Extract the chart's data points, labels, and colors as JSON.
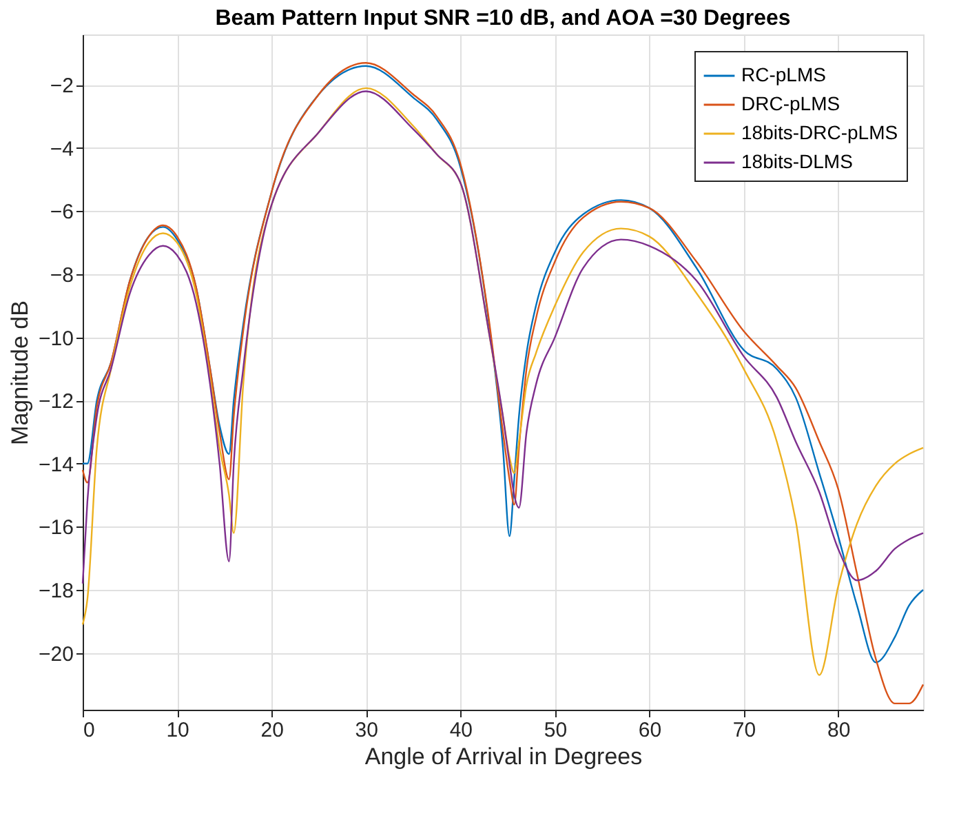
{
  "chart_data": {
    "type": "line",
    "title": "Beam Pattern Input SNR =10 dB, and AOA =30 Degrees",
    "xlabel": "Angle of Arrival in Degrees",
    "ylabel": "Magnitude dB",
    "x": [
      0,
      0.5,
      1.5,
      3,
      5,
      7,
      8.5,
      10,
      12,
      13.5,
      14.5,
      15.5,
      16,
      17,
      20,
      25,
      30,
      35,
      37.5,
      40,
      43,
      44.5,
      45.2,
      45.7,
      46.2,
      47,
      48,
      50,
      53,
      57,
      60,
      65,
      70,
      73.5,
      75.5,
      78,
      80,
      82,
      84,
      86,
      87.5,
      89
    ],
    "series": [
      {
        "name": "RC-pLMS",
        "color": "#0072bd",
        "values": [
          -14.0,
          -14.0,
          -12.0,
          -10.8,
          -8.2,
          -6.8,
          -6.5,
          -6.9,
          -8.4,
          -11.0,
          -12.8,
          -13.7,
          -12.0,
          -9.6,
          -5.4,
          -2.3,
          -1.4,
          -2.4,
          -3.1,
          -4.6,
          -9.5,
          -13.5,
          -16.3,
          -14.5,
          -12.5,
          -10.5,
          -9.0,
          -7.3,
          -6.1,
          -5.65,
          -5.9,
          -7.8,
          -10.4,
          -11.0,
          -11.9,
          -14.3,
          -16.3,
          -18.5,
          -20.3,
          -19.5,
          -18.5,
          -18.0
        ]
      },
      {
        "name": "DRC-pLMS",
        "color": "#d95319",
        "values": [
          -14.2,
          -14.6,
          -12.2,
          -10.8,
          -8.2,
          -6.8,
          -6.45,
          -6.8,
          -8.4,
          -11.0,
          -13.0,
          -14.5,
          -12.5,
          -9.8,
          -5.4,
          -2.3,
          -1.3,
          -2.3,
          -3.0,
          -4.5,
          -9.4,
          -13.0,
          -14.5,
          -15.3,
          -13.5,
          -11.0,
          -9.4,
          -7.6,
          -6.2,
          -5.7,
          -5.9,
          -7.6,
          -9.8,
          -10.9,
          -11.6,
          -13.3,
          -14.8,
          -17.5,
          -20.2,
          -21.6,
          -21.6,
          -21.0
        ]
      },
      {
        "name": "18bits-DRC-pLMS",
        "color": "#edb120",
        "values": [
          -19.1,
          -18.3,
          -13.5,
          -11.0,
          -8.4,
          -7.0,
          -6.7,
          -7.0,
          -8.6,
          -11.3,
          -13.5,
          -15.0,
          -16.2,
          -11.5,
          -5.8,
          -3.5,
          -2.1,
          -3.3,
          -4.2,
          -5.1,
          -9.8,
          -12.5,
          -13.8,
          -14.3,
          -13.3,
          -11.5,
          -10.5,
          -9.0,
          -7.3,
          -6.55,
          -6.8,
          -8.6,
          -11.0,
          -13.3,
          -15.8,
          -20.7,
          -17.9,
          -15.9,
          -14.7,
          -14.0,
          -13.7,
          -13.5
        ]
      },
      {
        "name": "18bits-DLMS",
        "color": "#7e2f8e",
        "values": [
          -17.8,
          -15.2,
          -12.5,
          -11.0,
          -8.6,
          -7.4,
          -7.1,
          -7.4,
          -8.9,
          -11.5,
          -14.0,
          -17.1,
          -14.0,
          -11.0,
          -5.8,
          -3.5,
          -2.2,
          -3.4,
          -4.2,
          -5.1,
          -9.8,
          -12.5,
          -14.0,
          -15.0,
          -15.4,
          -13.0,
          -11.5,
          -10.0,
          -7.8,
          -6.9,
          -7.1,
          -8.2,
          -10.6,
          -11.9,
          -13.3,
          -14.9,
          -16.7,
          -17.7,
          -17.4,
          -16.7,
          -16.4,
          -16.2
        ]
      }
    ],
    "xlim": [
      0,
      89
    ],
    "ylim": [
      -21.8,
      -0.4
    ],
    "xticks": [
      0,
      10,
      20,
      30,
      40,
      50,
      60,
      70,
      80
    ],
    "yticks": [
      -20,
      -18,
      -16,
      -14,
      -12,
      -10,
      -8,
      -6,
      -4,
      -2
    ],
    "grid": true,
    "legend": "top right",
    "line_style": "solid",
    "marker": "none"
  }
}
